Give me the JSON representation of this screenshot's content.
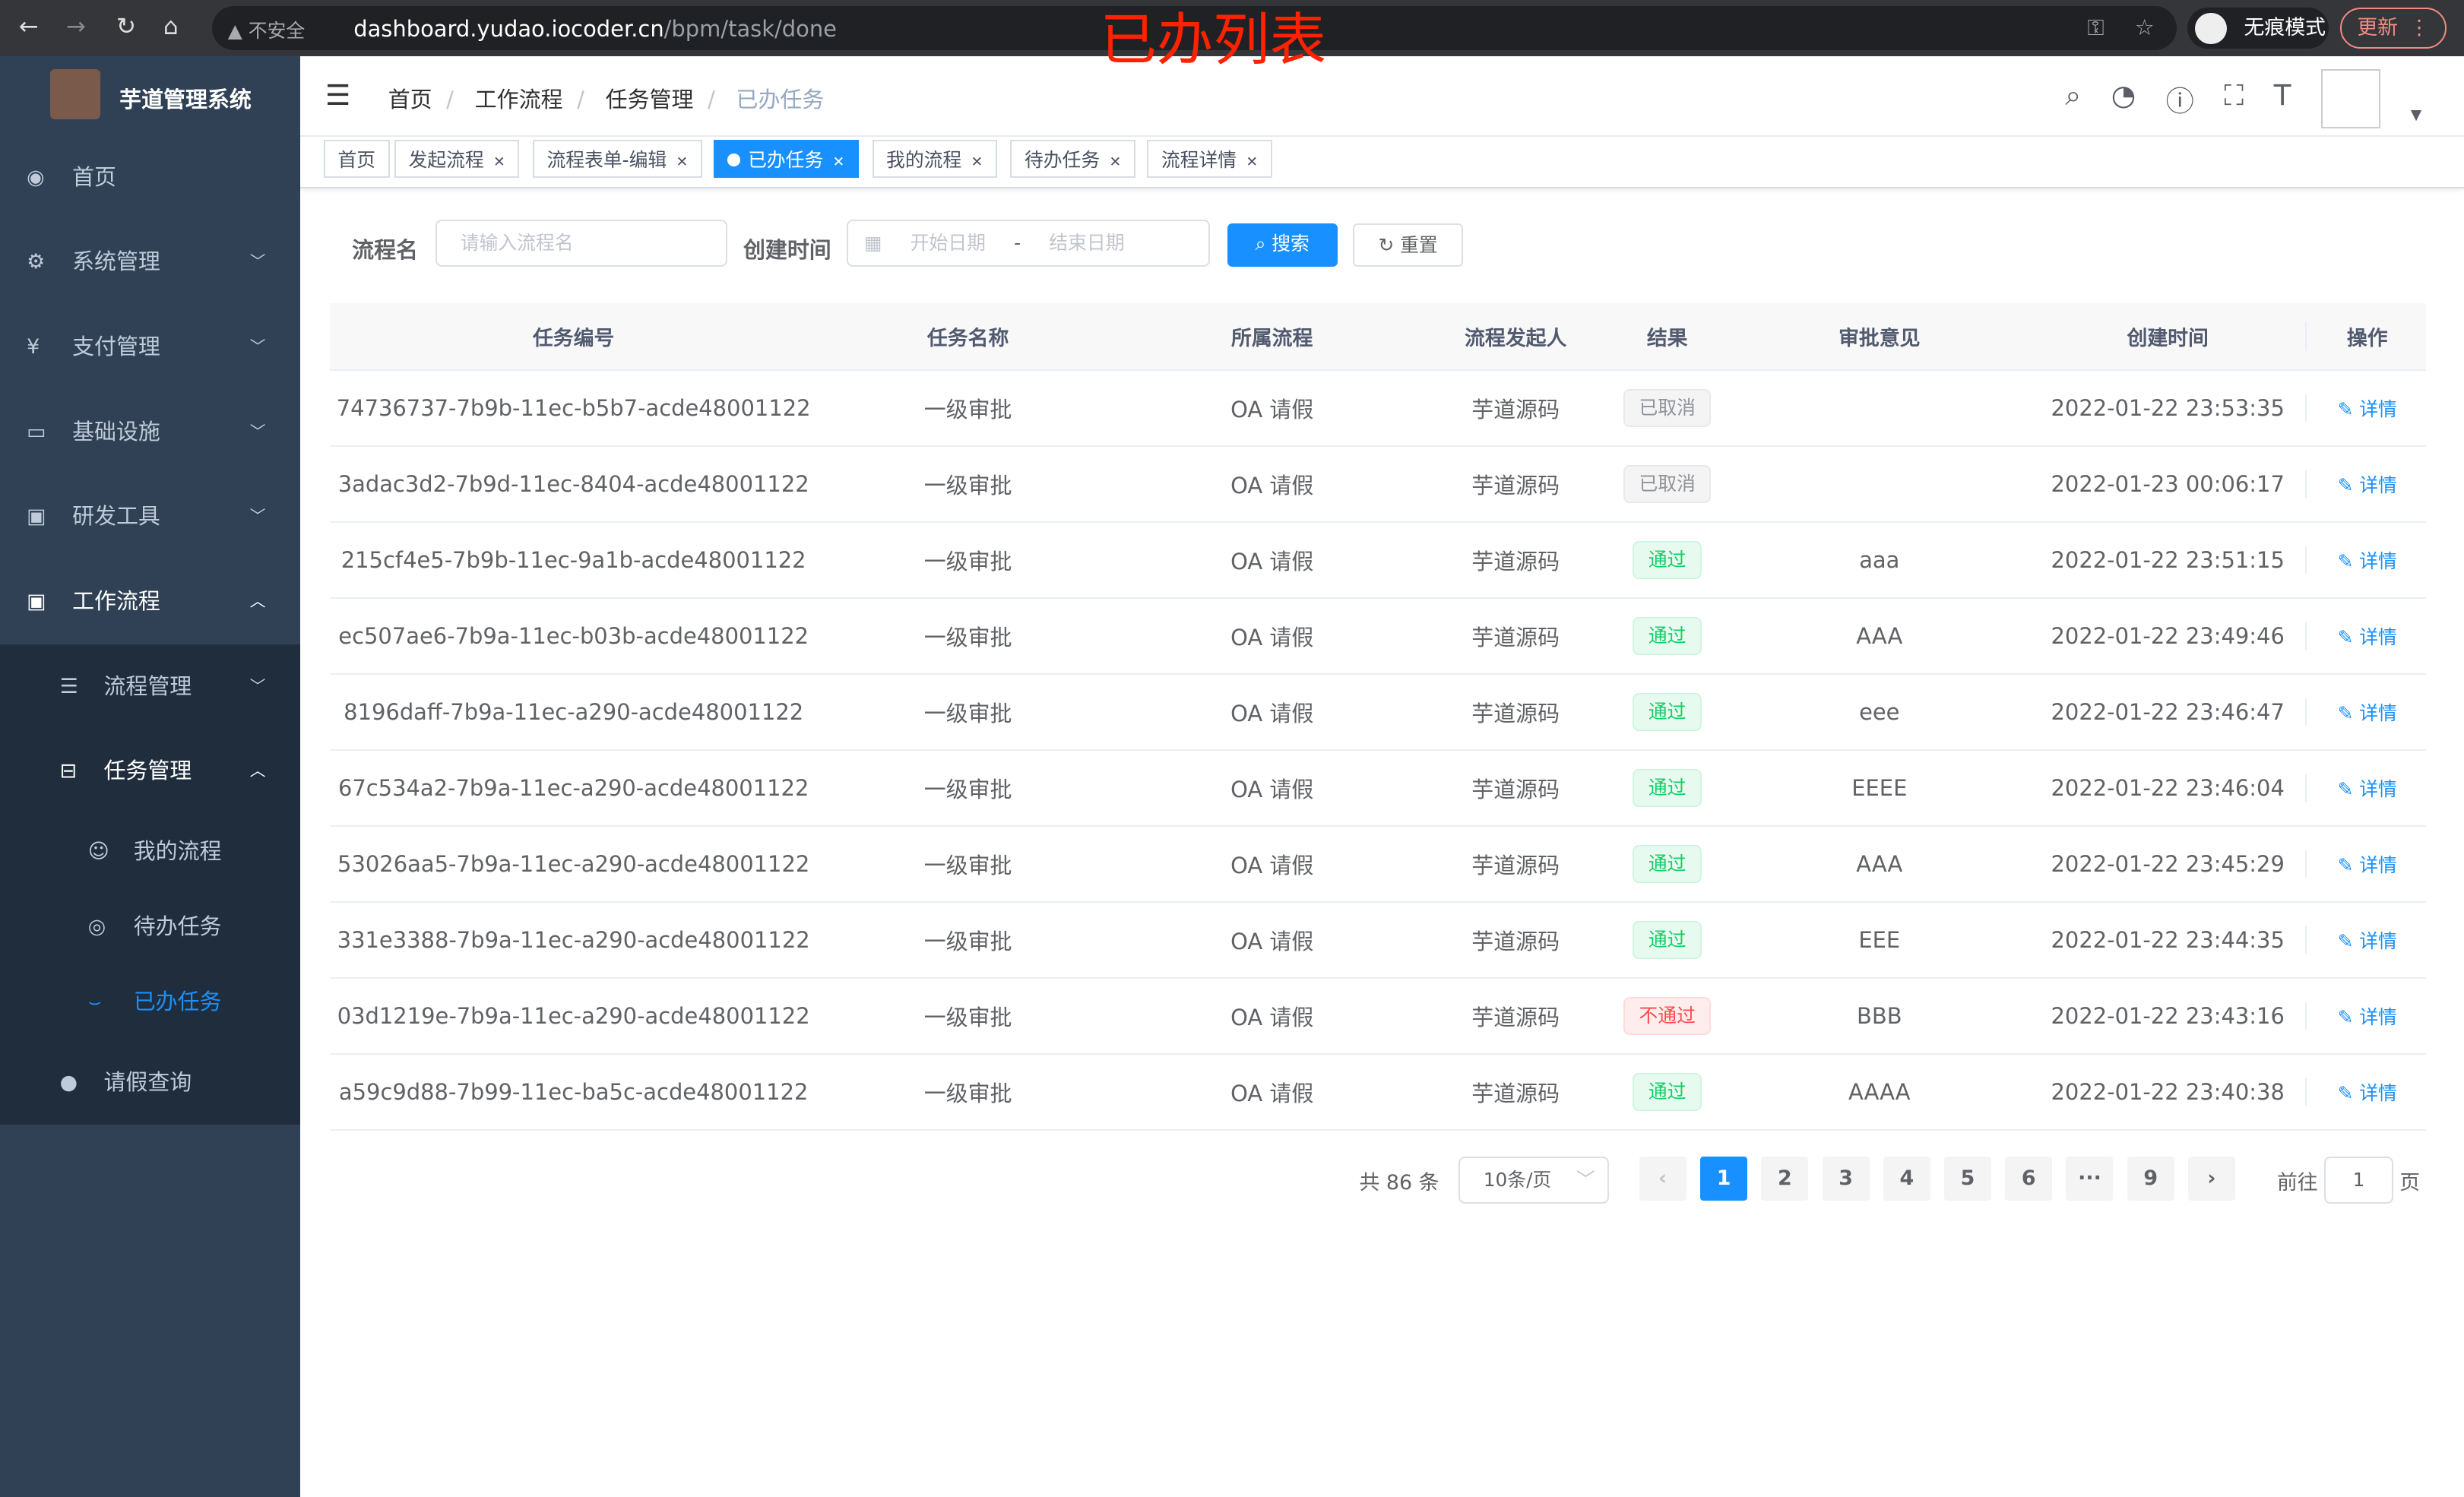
{
  "browser": {
    "insecure": "不安全",
    "url_host": "dashboard.yudao.iocoder.cn",
    "url_path": "/bpm/task/done",
    "incognito": "无痕模式",
    "update": "更新"
  },
  "annotation": "已办列表",
  "sidebar": {
    "title": "芋道管理系统",
    "items": [
      {
        "label": "首页",
        "icon": "dashboard-icon"
      },
      {
        "label": "系统管理",
        "icon": "gear-icon"
      },
      {
        "label": "支付管理",
        "icon": "yen-icon"
      },
      {
        "label": "基础设施",
        "icon": "monitor-icon"
      },
      {
        "label": "研发工具",
        "icon": "toolbox-icon"
      },
      {
        "label": "工作流程",
        "icon": "toolbox-icon"
      }
    ],
    "workflow": [
      {
        "label": "流程管理"
      },
      {
        "label": "任务管理"
      }
    ],
    "task": [
      {
        "label": "我的流程"
      },
      {
        "label": "待办任务"
      },
      {
        "label": "已办任务"
      }
    ],
    "leave": "请假查询"
  },
  "breadcrumb": [
    "首页",
    "工作流程",
    "任务管理",
    "已办任务"
  ],
  "tabs": [
    "首页",
    "发起流程",
    "流程表单-编辑",
    "已办任务",
    "我的流程",
    "待办任务",
    "流程详情"
  ],
  "search": {
    "name_label": "流程名",
    "name_placeholder": "请输入流程名",
    "time_label": "创建时间",
    "start_placeholder": "开始日期",
    "sep": "-",
    "end_placeholder": "结束日期",
    "search_btn": "搜索",
    "reset_btn": "重置"
  },
  "table": {
    "headers": [
      "任务编号",
      "任务名称",
      "所属流程",
      "流程发起人",
      "结果",
      "审批意见",
      "创建时间",
      "操作"
    ],
    "action": "详情",
    "rows": [
      [
        "74736737-7b9b-11ec-b5b7-acde48001122",
        "一级审批",
        "OA 请假",
        "芋道源码",
        "已取消",
        "",
        "2022-01-22 23:53:35"
      ],
      [
        "3adac3d2-7b9d-11ec-8404-acde48001122",
        "一级审批",
        "OA 请假",
        "芋道源码",
        "已取消",
        "",
        "2022-01-23 00:06:17"
      ],
      [
        "215cf4e5-7b9b-11ec-9a1b-acde48001122",
        "一级审批",
        "OA 请假",
        "芋道源码",
        "通过",
        "aaa",
        "2022-01-22 23:51:15"
      ],
      [
        "ec507ae6-7b9a-11ec-b03b-acde48001122",
        "一级审批",
        "OA 请假",
        "芋道源码",
        "通过",
        "AAA",
        "2022-01-22 23:49:46"
      ],
      [
        "8196daff-7b9a-11ec-a290-acde48001122",
        "一级审批",
        "OA 请假",
        "芋道源码",
        "通过",
        "eee",
        "2022-01-22 23:46:47"
      ],
      [
        "67c534a2-7b9a-11ec-a290-acde48001122",
        "一级审批",
        "OA 请假",
        "芋道源码",
        "通过",
        "EEEE",
        "2022-01-22 23:46:04"
      ],
      [
        "53026aa5-7b9a-11ec-a290-acde48001122",
        "一级审批",
        "OA 请假",
        "芋道源码",
        "通过",
        "AAA",
        "2022-01-22 23:45:29"
      ],
      [
        "331e3388-7b9a-11ec-a290-acde48001122",
        "一级审批",
        "OA 请假",
        "芋道源码",
        "通过",
        "EEE",
        "2022-01-22 23:44:35"
      ],
      [
        "03d1219e-7b9a-11ec-a290-acde48001122",
        "一级审批",
        "OA 请假",
        "芋道源码",
        "不通过",
        "BBB",
        "2022-01-22 23:43:16"
      ],
      [
        "a59c9d88-7b99-11ec-ba5c-acde48001122",
        "一级审批",
        "OA 请假",
        "芋道源码",
        "通过",
        "AAAA",
        "2022-01-22 23:40:38"
      ]
    ]
  },
  "status_colors": {
    "已取消": [
      "#909399",
      "#f4f4f5",
      "#e9e9eb"
    ],
    "通过": [
      "#13ce66",
      "#e7faf0",
      "#d0f5e0"
    ],
    "不通过": [
      "#ff4949",
      "#ffeded",
      "#ffdbdb"
    ]
  },
  "pagination": {
    "total": "共 86 条",
    "page_size": "10条/页",
    "pages": [
      "1",
      "2",
      "3",
      "4",
      "5",
      "6",
      "···",
      "9"
    ],
    "current": "1",
    "goto_label": "前往",
    "goto_value": "1",
    "page_suffix": "页"
  }
}
